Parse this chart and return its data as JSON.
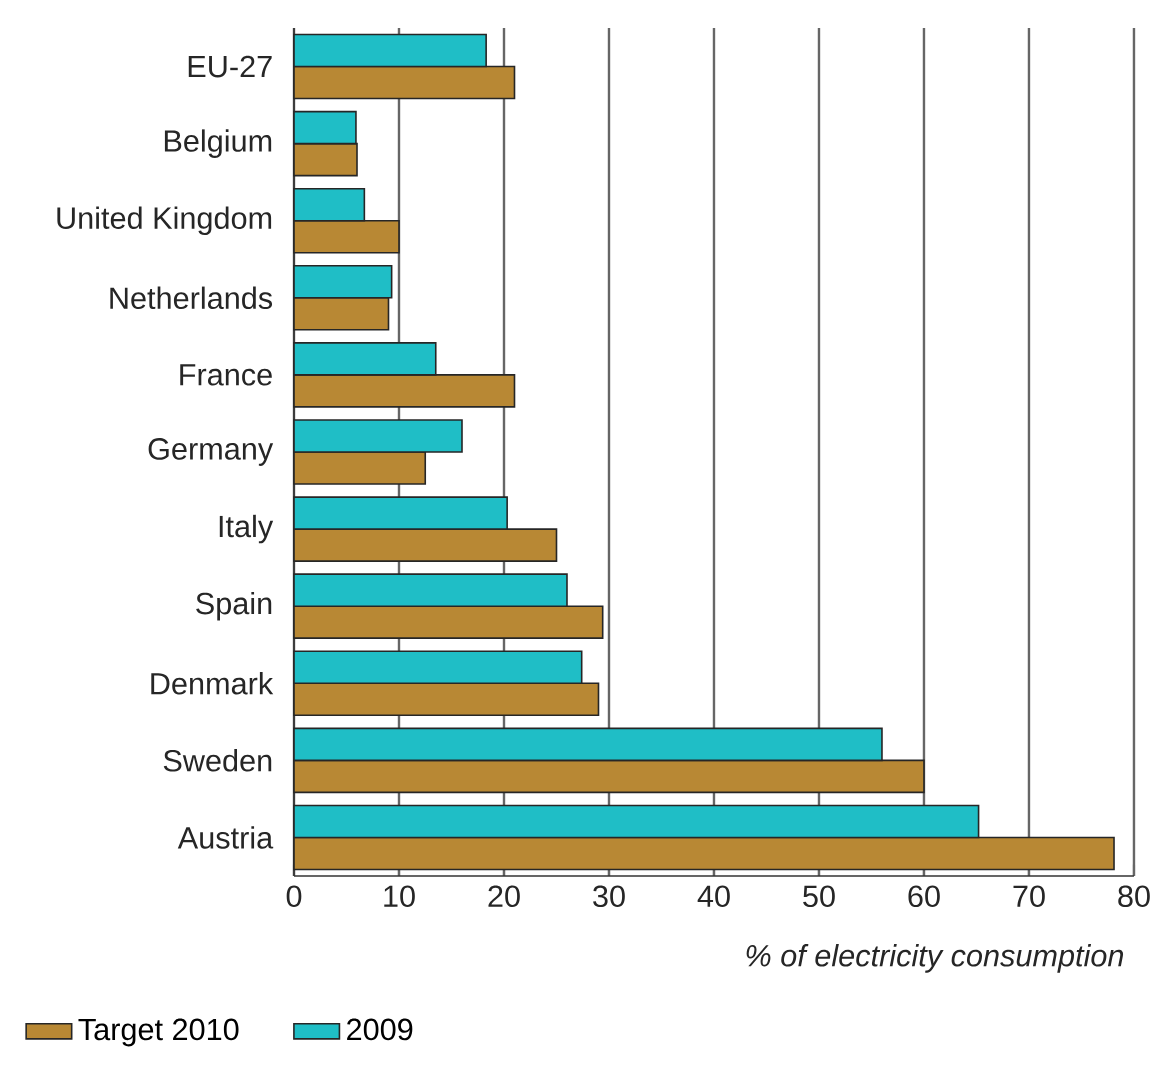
{
  "chart_data": {
    "type": "bar",
    "orientation": "horizontal",
    "xlabel": "% of electricity consumption",
    "categories": [
      "EU-27",
      "Belgium",
      "United Kingdom",
      "Netherlands",
      "France",
      "Germany",
      "Italy",
      "Spain",
      "Denmark",
      "Sweden",
      "Austria"
    ],
    "series": [
      {
        "name": "Target 2010",
        "color": "#b88834",
        "values": [
          21,
          6,
          10,
          9,
          21,
          12.5,
          25,
          29.4,
          29,
          60,
          78.1
        ]
      },
      {
        "name": "2009",
        "color": "#1fbec6",
        "values": [
          18.3,
          5.9,
          6.7,
          9.3,
          13.5,
          16,
          20.3,
          26,
          27.4,
          56,
          65.2
        ]
      }
    ],
    "xlim": [
      0,
      80
    ],
    "xticks": [
      0,
      10,
      20,
      30,
      40,
      50,
      60,
      70,
      80
    ],
    "grid": "x",
    "legend": "bottom left"
  }
}
